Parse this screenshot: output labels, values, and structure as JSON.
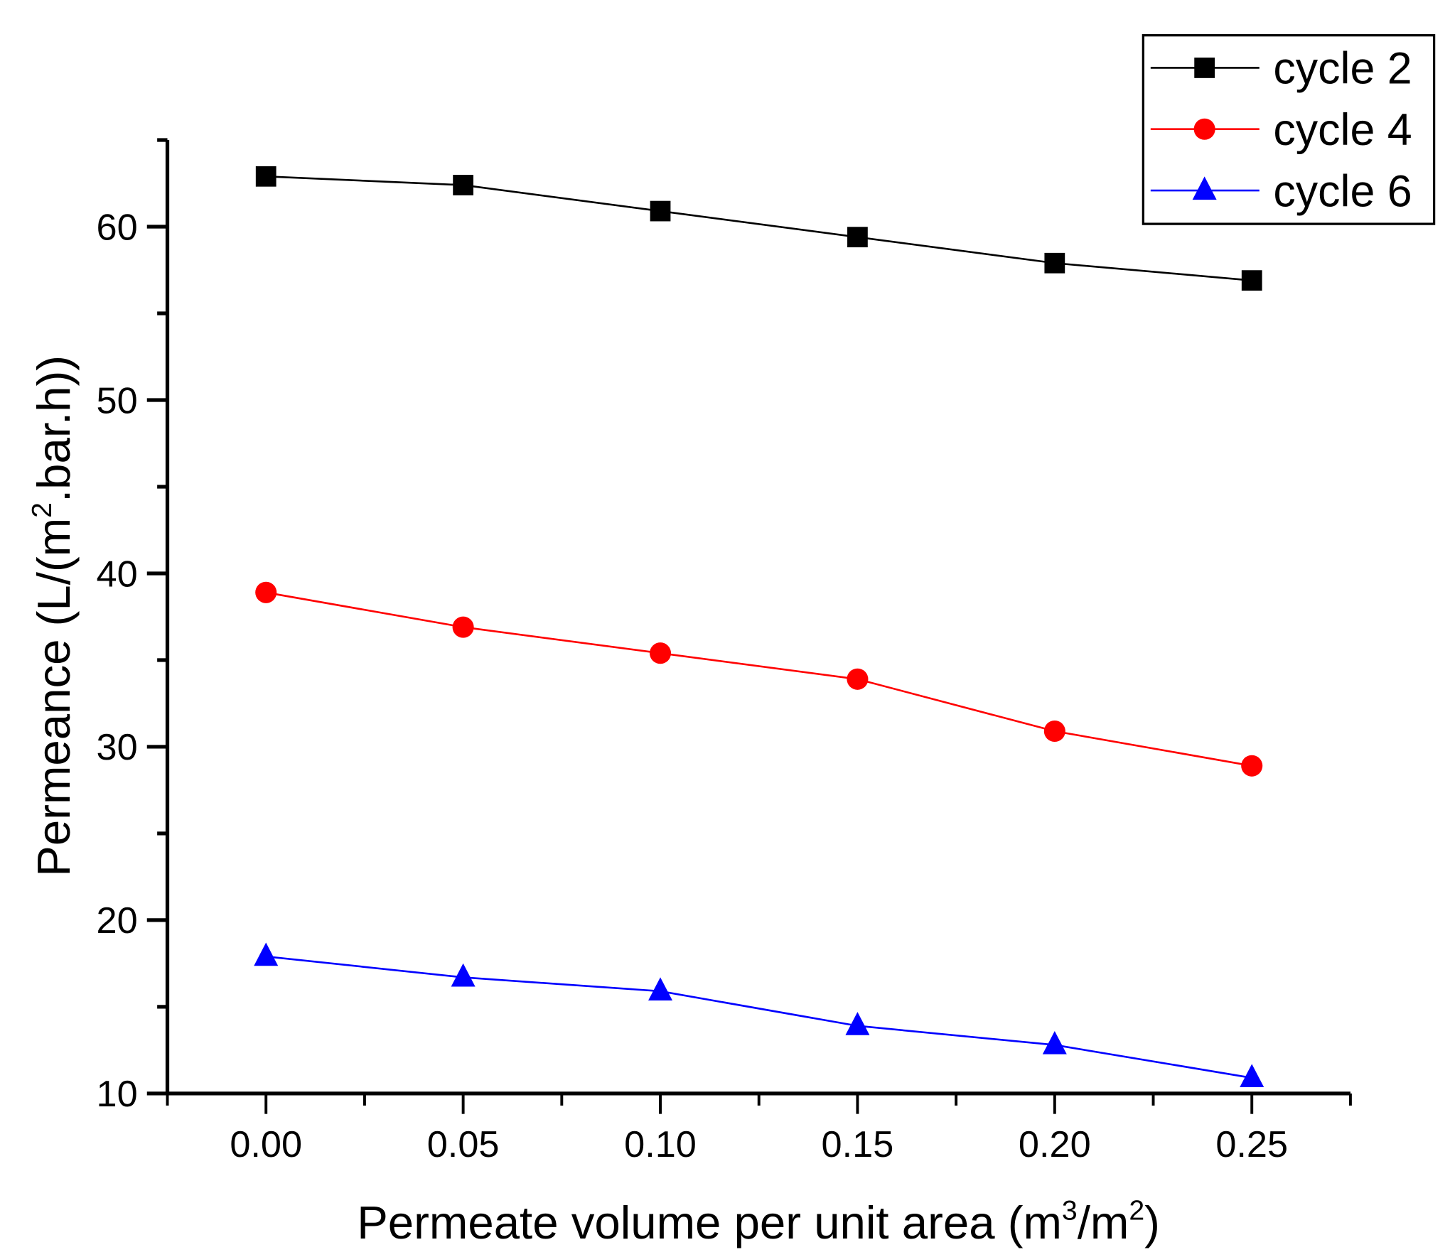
{
  "chart_data": {
    "type": "line",
    "title": "",
    "xlabel": "Permeate volume per unit area (m³/m²)",
    "xlabel_parts": {
      "main": "Permeate volume per unit area (m",
      "sup1": "3",
      "mid": "/m",
      "sup2": "2",
      "end": ")"
    },
    "ylabel": "Permeance (L/(m².bar.h))",
    "ylabel_parts": {
      "main": "Permeance (L/(m",
      "sup": "2",
      "end": ".bar.h))"
    },
    "xlim": [
      -0.025,
      0.275
    ],
    "ylim": [
      10,
      65
    ],
    "xticks": [
      "0.00",
      "0.05",
      "0.10",
      "0.15",
      "0.20",
      "0.25"
    ],
    "xtick_values": [
      0,
      0.05,
      0.1,
      0.15,
      0.2,
      0.25
    ],
    "yticks": [
      "10",
      "20",
      "30",
      "40",
      "50",
      "60"
    ],
    "ytick_values": [
      10,
      20,
      30,
      40,
      50,
      60
    ],
    "grid": false,
    "legend_position": "top-right",
    "x": [
      0,
      0.05,
      0.1,
      0.15,
      0.2,
      0.25
    ],
    "series": [
      {
        "name": "cycle 2",
        "color": "#000000",
        "marker": "square",
        "values": [
          62.9,
          62.4,
          60.9,
          59.4,
          57.9,
          56.9
        ]
      },
      {
        "name": "cycle 4",
        "color": "#ff0000",
        "marker": "circle",
        "values": [
          38.9,
          36.9,
          35.4,
          33.9,
          30.9,
          28.9
        ]
      },
      {
        "name": "cycle 6",
        "color": "#0000ff",
        "marker": "triangle",
        "values": [
          17.9,
          16.7,
          15.9,
          13.9,
          12.8,
          10.9
        ]
      }
    ]
  }
}
